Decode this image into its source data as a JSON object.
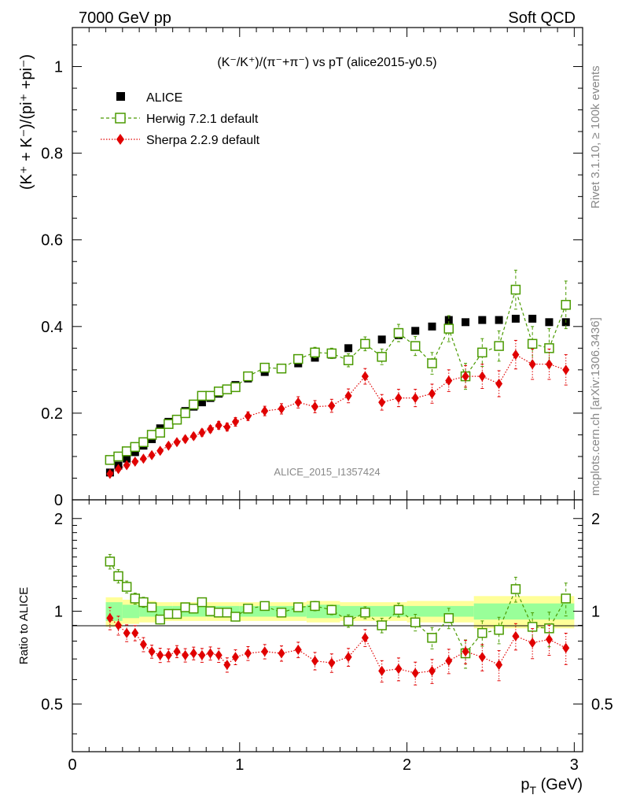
{
  "header": {
    "left": "7000 GeV pp",
    "right": "Soft QCD"
  },
  "side_labels": {
    "rivet": "Rivet 3.1.10, ≥ 100k events",
    "mcplots": "mcplots.cern.ch [arXiv:1306.3436]"
  },
  "watermark": "ALICE_2015_I1357424",
  "chart_data": {
    "type": "scatter",
    "title": "(K⁻/K⁺)/(π⁻+π⁻) vs pT (alice2015-y0.5)",
    "xlabel": "p_T (GeV)",
    "ylabel": "(K⁺ + K⁻)/(pi⁺ +pi⁻)",
    "ratio_ylabel": "Ratio to ALICE",
    "xlim": [
      0,
      3.05
    ],
    "ylim": [
      0,
      1.09
    ],
    "ratio_ylim": [
      0.35,
      2.3
    ],
    "x_ticks": [
      "0",
      "1",
      "2",
      "3"
    ],
    "y_ticks": [
      "0",
      "0.2",
      "0.4",
      "0.6",
      "0.8",
      "1"
    ],
    "ratio_ticks": [
      "0.5",
      "1",
      "2"
    ],
    "legend_position": "top-left",
    "x": [
      0.225,
      0.275,
      0.325,
      0.375,
      0.425,
      0.475,
      0.525,
      0.575,
      0.625,
      0.675,
      0.725,
      0.775,
      0.825,
      0.875,
      0.925,
      0.975,
      1.05,
      1.15,
      1.25,
      1.35,
      1.45,
      1.55,
      1.65,
      1.75,
      1.85,
      1.95,
      2.05,
      2.15,
      2.25,
      2.35,
      2.45,
      2.55,
      2.65,
      2.75,
      2.85,
      2.95
    ],
    "series": [
      {
        "name": "ALICE",
        "color": "#000000",
        "marker": "filled-square",
        "values": [
          0.063,
          0.079,
          0.095,
          0.11,
          0.125,
          0.14,
          0.165,
          0.18,
          0.185,
          0.205,
          0.215,
          0.225,
          0.235,
          0.245,
          0.255,
          0.265,
          0.28,
          0.295,
          0.305,
          0.315,
          0.328,
          0.335,
          0.35,
          0.36,
          0.37,
          0.38,
          0.39,
          0.4,
          0.415,
          0.41,
          0.415,
          0.415,
          0.418,
          0.418,
          0.41,
          0.41
        ]
      },
      {
        "name": "Herwig 7.2.1 default",
        "color": "#4a9a00",
        "marker": "open-square",
        "values": [
          0.092,
          0.1,
          0.112,
          0.122,
          0.133,
          0.15,
          0.155,
          0.175,
          0.185,
          0.2,
          0.22,
          0.24,
          0.24,
          0.25,
          0.255,
          0.26,
          0.285,
          0.305,
          0.303,
          0.325,
          0.34,
          0.338,
          0.322,
          0.36,
          0.33,
          0.385,
          0.355,
          0.315,
          0.395,
          0.285,
          0.34,
          0.355,
          0.485,
          0.36,
          0.35,
          0.45
        ],
        "errors": [
          0.005,
          0.005,
          0.005,
          0.005,
          0.005,
          0.005,
          0.005,
          0.005,
          0.005,
          0.005,
          0.005,
          0.006,
          0.006,
          0.006,
          0.006,
          0.006,
          0.008,
          0.009,
          0.01,
          0.01,
          0.012,
          0.012,
          0.015,
          0.016,
          0.018,
          0.02,
          0.022,
          0.025,
          0.03,
          0.03,
          0.032,
          0.035,
          0.045,
          0.04,
          0.045,
          0.055
        ],
        "ratio": [
          1.45,
          1.3,
          1.2,
          1.1,
          1.07,
          1.03,
          0.94,
          0.98,
          0.98,
          1.03,
          1.02,
          1.07,
          1.0,
          0.99,
          0.99,
          0.96,
          1.02,
          1.04,
          0.99,
          1.03,
          1.04,
          1.01,
          0.93,
          0.99,
          0.9,
          1.01,
          0.92,
          0.82,
          0.95,
          0.73,
          0.85,
          0.87,
          1.18,
          0.89,
          0.88,
          1.1
        ]
      },
      {
        "name": "Sherpa 2.2.9 default",
        "color": "#e00000",
        "marker": "filled-diamond",
        "values": [
          0.06,
          0.071,
          0.08,
          0.088,
          0.095,
          0.103,
          0.113,
          0.125,
          0.133,
          0.14,
          0.147,
          0.155,
          0.163,
          0.172,
          0.168,
          0.18,
          0.193,
          0.205,
          0.21,
          0.225,
          0.215,
          0.217,
          0.24,
          0.285,
          0.225,
          0.235,
          0.235,
          0.245,
          0.275,
          0.285,
          0.285,
          0.268,
          0.335,
          0.313,
          0.313,
          0.3
        ],
        "errors": [
          0.005,
          0.005,
          0.005,
          0.005,
          0.005,
          0.005,
          0.006,
          0.006,
          0.006,
          0.007,
          0.007,
          0.008,
          0.008,
          0.009,
          0.009,
          0.01,
          0.01,
          0.011,
          0.012,
          0.013,
          0.014,
          0.015,
          0.016,
          0.018,
          0.018,
          0.02,
          0.02,
          0.022,
          0.025,
          0.025,
          0.028,
          0.03,
          0.033,
          0.035,
          0.035,
          0.035
        ],
        "ratio": [
          0.95,
          0.9,
          0.85,
          0.85,
          0.78,
          0.74,
          0.72,
          0.72,
          0.74,
          0.72,
          0.73,
          0.72,
          0.73,
          0.72,
          0.67,
          0.71,
          0.73,
          0.74,
          0.73,
          0.75,
          0.69,
          0.68,
          0.71,
          0.82,
          0.64,
          0.65,
          0.63,
          0.64,
          0.69,
          0.74,
          0.71,
          0.67,
          0.83,
          0.79,
          0.81,
          0.76
        ]
      }
    ],
    "ratio_bands": {
      "x_edges": [
        0.2,
        0.3,
        0.4,
        0.5,
        0.6,
        0.8,
        1.0,
        1.4,
        1.6,
        2.0,
        2.4,
        3.0
      ],
      "green_half_width": [
        0.07,
        0.05,
        0.04,
        0.04,
        0.04,
        0.04,
        0.04,
        0.05,
        0.04,
        0.04,
        0.06
      ],
      "yellow_half_width": [
        0.11,
        0.09,
        0.08,
        0.07,
        0.07,
        0.07,
        0.07,
        0.08,
        0.07,
        0.08,
        0.12
      ]
    }
  }
}
